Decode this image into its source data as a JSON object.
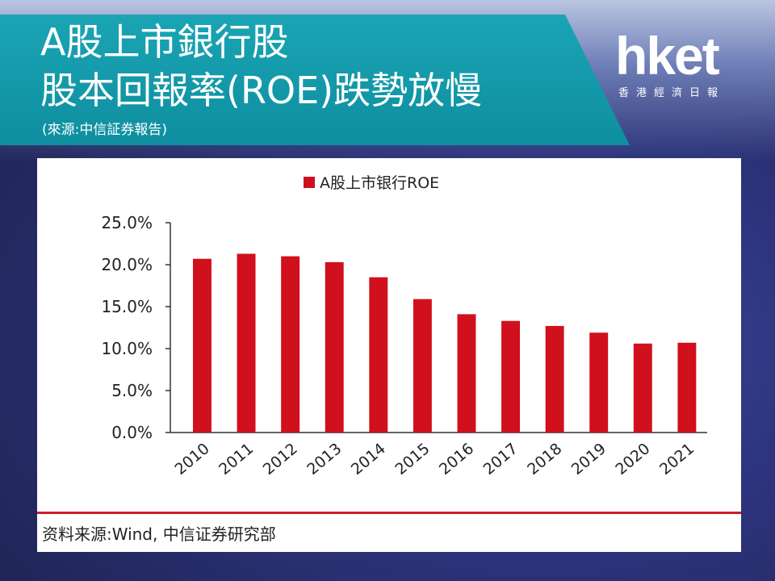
{
  "title": {
    "line1": "A股上市銀行股",
    "line2": "股本回報率(ROE)跌勢放慢",
    "source_note": "(來源:中信証券報告)"
  },
  "logo": {
    "wordmark": "hket",
    "subtitle": "香港經濟日報"
  },
  "chart_source": "资料来源:Wind, 中信证券研究部",
  "colors": {
    "bar": "#d0101d",
    "banner": "#1aa5b4"
  },
  "chart_data": {
    "type": "bar",
    "legend": "A股上市银行ROE",
    "legend_position": "top-center",
    "grid": false,
    "categories": [
      "2010",
      "2011",
      "2012",
      "2013",
      "2014",
      "2015",
      "2016",
      "2017",
      "2018",
      "2019",
      "2020",
      "2021"
    ],
    "values": [
      20.7,
      21.3,
      21.0,
      20.3,
      18.5,
      15.9,
      14.1,
      13.3,
      12.7,
      11.9,
      10.6,
      10.7
    ],
    "yticks": [
      "0.0%",
      "5.0%",
      "10.0%",
      "15.0%",
      "20.0%",
      "25.0%"
    ],
    "ylim": [
      0,
      25
    ]
  }
}
